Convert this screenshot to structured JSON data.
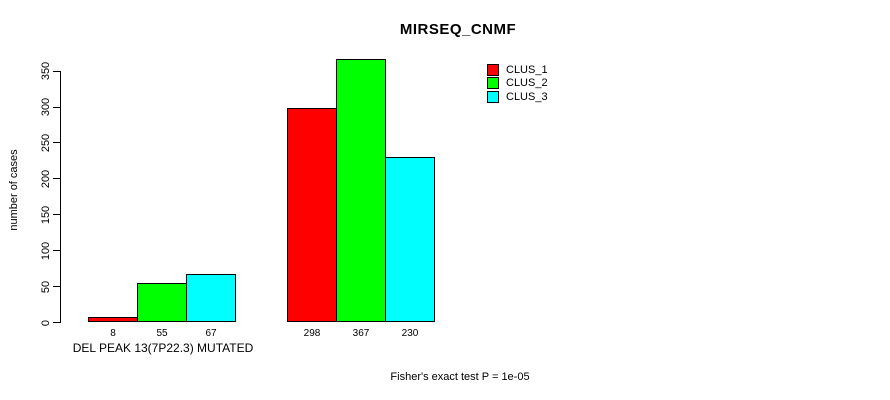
{
  "chart_data": {
    "type": "bar",
    "title": "MIRSEQ_CNMF",
    "ylabel": "number of cases",
    "xlabel": "",
    "ylim": [
      0,
      350
    ],
    "yticks": [
      0,
      50,
      100,
      150,
      200,
      250,
      300,
      350
    ],
    "grid": false,
    "categories": [
      "DEL PEAK 13(7P22.3) MUTATED",
      ""
    ],
    "series": [
      {
        "name": "CLUS_1",
        "color": "#ff0000",
        "values": [
          8,
          298
        ]
      },
      {
        "name": "CLUS_2",
        "color": "#00ff00",
        "values": [
          55,
          367
        ]
      },
      {
        "name": "CLUS_3",
        "color": "#00ffff",
        "values": [
          67,
          230
        ]
      }
    ],
    "bar_value_labels": [
      [
        8,
        55,
        67
      ],
      [
        298,
        367,
        230
      ]
    ],
    "legend": {
      "position": "top-right",
      "entries": [
        {
          "label": "CLUS_1",
          "color": "#ff0000"
        },
        {
          "label": "CLUS_2",
          "color": "#00ff00"
        },
        {
          "label": "CLUS_3",
          "color": "#00ffff"
        }
      ]
    },
    "annotation": "Fisher's exact test P = 1e-05",
    "colors": {
      "bar_border": "#000000",
      "axis": "#000000",
      "background": "#ffffff"
    }
  }
}
